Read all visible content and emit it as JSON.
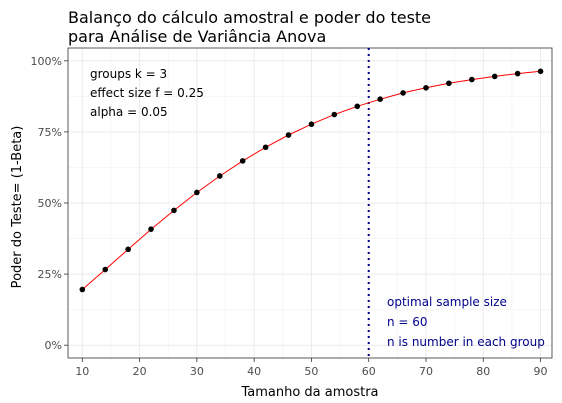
{
  "chart_data": {
    "type": "line",
    "title_lines": [
      "Balanço do cálculo amostral e poder do teste",
      "para Análise de Variância Anova"
    ],
    "xlabel": "Tamanho da amostra",
    "ylabel": "Poder do Teste= (1-Beta)",
    "xlim": [
      7.5,
      92
    ],
    "ylim": [
      -0.045,
      1.045
    ],
    "xticks": [
      10,
      20,
      30,
      40,
      50,
      60,
      70,
      80,
      90
    ],
    "yticks": [
      0,
      0.25,
      0.5,
      0.75,
      1.0
    ],
    "ytick_labels": [
      "0%",
      "25%",
      "50%",
      "75%",
      "100%"
    ],
    "grid": true,
    "series": [
      {
        "x": [
          10,
          14,
          18,
          22,
          26,
          30,
          34,
          38,
          42,
          46,
          50,
          54,
          58,
          62,
          66,
          70,
          74,
          78,
          82,
          86,
          90
        ],
        "values": [
          0.196,
          0.266,
          0.337,
          0.408,
          0.474,
          0.537,
          0.595,
          0.648,
          0.696,
          0.739,
          0.777,
          0.811,
          0.84,
          0.865,
          0.887,
          0.905,
          0.921,
          0.934,
          0.945,
          0.955,
          0.963
        ],
        "line_color": "#ff0000",
        "point_color": "#000000"
      }
    ],
    "vline": {
      "x": 60,
      "color": "#00008b",
      "style": "dotted"
    },
    "annotations": {
      "params": [
        "groups k = 3",
        "effect size f = 0.25",
        "alpha = 0.05"
      ],
      "sample": [
        "optimal sample size",
        "n = 60",
        "n is number in each group"
      ]
    }
  }
}
